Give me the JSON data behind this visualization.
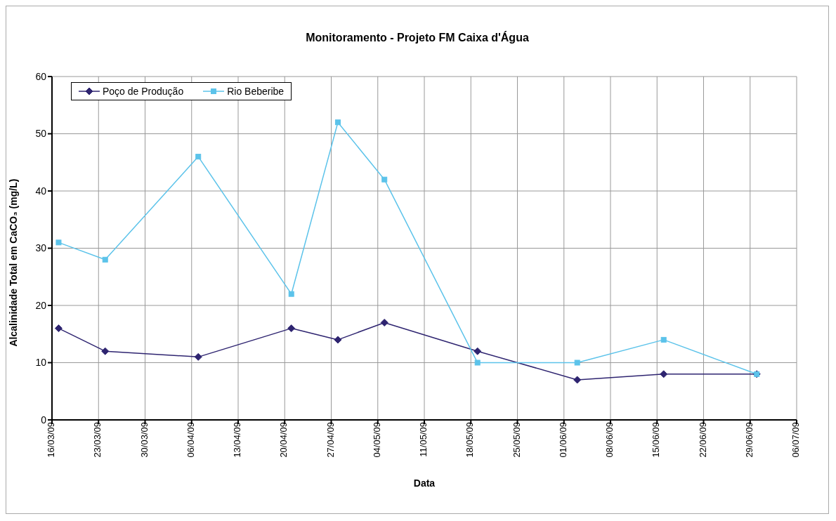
{
  "chart_data": {
    "type": "line",
    "title": "Monitoramento - Projeto FM Caixa d'Água",
    "xlabel": "Data",
    "ylabel": "Alcalinidade Total em CaCO₃ (mg/L)",
    "x": [
      "--03-17",
      "--03-24",
      "--04-07",
      "--04-21",
      "--04-28",
      "--05-05",
      "--05-19",
      "--06-03",
      "--06-16",
      "--06-30"
    ],
    "series": [
      {
        "name": "Poço de Produção",
        "color": "#2e2470",
        "marker": "diamond",
        "values": [
          16,
          12,
          11,
          16,
          14,
          17,
          12,
          7,
          8,
          8
        ]
      },
      {
        "name": "Rio Beberibe",
        "color": "#5cc3ea",
        "marker": "square",
        "values": [
          31,
          28,
          46,
          22,
          52,
          42,
          10,
          10,
          14,
          8
        ]
      }
    ],
    "xlim": [
      "--03-16",
      "--07-06"
    ],
    "xticks": [
      {
        "value": "--03-16",
        "label": "16/03/09"
      },
      {
        "value": "--03-23",
        "label": "23/03/09"
      },
      {
        "value": "--03-30",
        "label": "30/03/09"
      },
      {
        "value": "--04-06",
        "label": "06/04/09"
      },
      {
        "value": "--04-13",
        "label": "13/04/09"
      },
      {
        "value": "--04-20",
        "label": "20/04/09"
      },
      {
        "value": "--04-27",
        "label": "27/04/09"
      },
      {
        "value": "--05-04",
        "label": "04/05/09"
      },
      {
        "value": "--05-11",
        "label": "11/05/09"
      },
      {
        "value": "--05-18",
        "label": "18/05/09"
      },
      {
        "value": "--05-25",
        "label": "25/05/09"
      },
      {
        "value": "--06-01",
        "label": "01/06/09"
      },
      {
        "value": "--06-08",
        "label": "08/06/09"
      },
      {
        "value": "--06-15",
        "label": "15/06/09"
      },
      {
        "value": "--06-22",
        "label": "22/06/09"
      },
      {
        "value": "--06-29",
        "label": "29/06/09"
      },
      {
        "value": "--07-06",
        "label": "06/07/09"
      }
    ],
    "ylim": [
      0,
      60
    ],
    "yticks": [
      0,
      10,
      20,
      30,
      40,
      50,
      60
    ],
    "grid": true,
    "legend": "top left",
    "line_style": "solid"
  }
}
